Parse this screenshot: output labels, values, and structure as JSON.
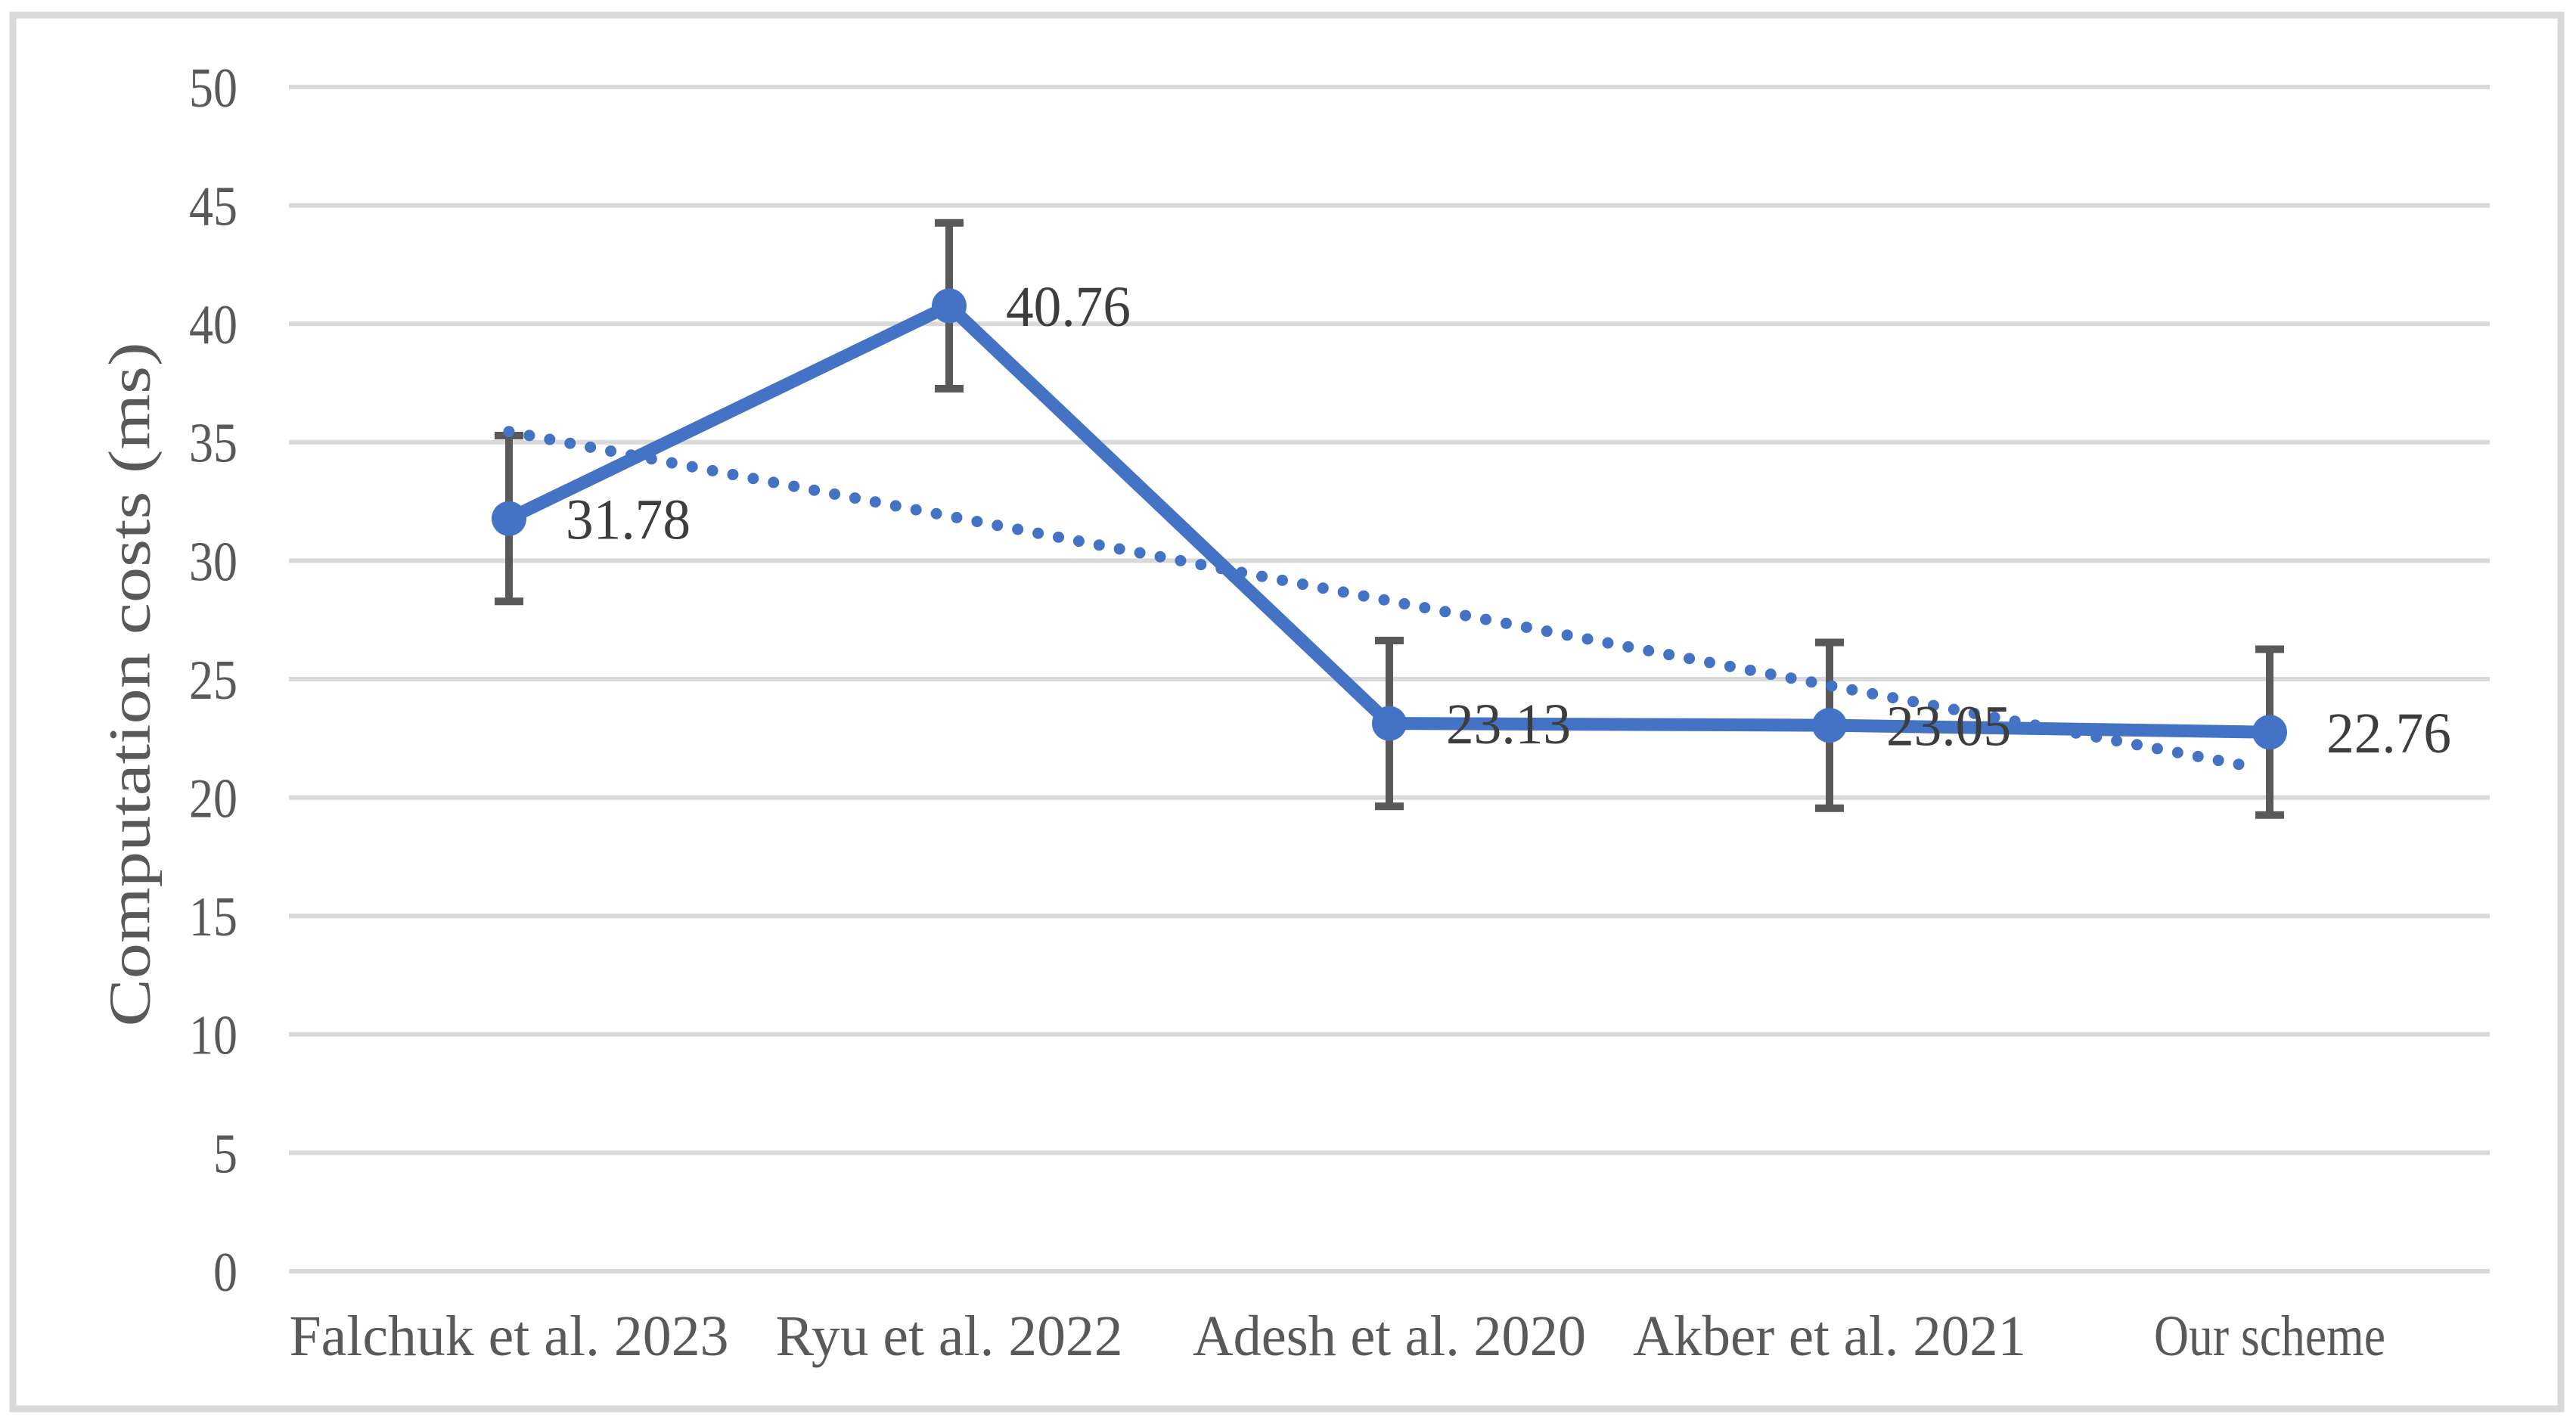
{
  "chart_data": {
    "type": "line",
    "title": "",
    "xlabel": "",
    "ylabel": "Computation costs (ms)",
    "categories": [
      "Falchuk et al. 2023",
      "Ryu et al. 2022",
      "Adesh et al. 2020",
      "Akber et al. 2021",
      "Our scheme"
    ],
    "series": [
      {
        "name": "Computation costs",
        "line_style": "solid",
        "marker": "circle",
        "values": [
          31.78,
          40.76,
          23.13,
          23.05,
          22.76
        ],
        "data_labels": [
          "31.78",
          "40.76",
          "23.13",
          "23.05",
          "22.76"
        ],
        "error_bar_plus_minus": 3.5
      },
      {
        "name": "Linear trendline",
        "line_style": "dotted",
        "marker": "none",
        "values": [
          35.45,
          31.88,
          28.3,
          24.73,
          21.15
        ]
      }
    ],
    "ylim": [
      0,
      50
    ],
    "yticks": [
      "0",
      "5",
      "10",
      "15",
      "20",
      "25",
      "30",
      "35",
      "40",
      "45",
      "50"
    ],
    "grid": "horizontal",
    "legend": "none",
    "colors": {
      "series_blue": "#4472C4",
      "error_bar_gray": "#595959",
      "axis_text_gray": "#595959",
      "data_label_gray": "#3d3d3d",
      "gridline_gray": "#D9D9D9",
      "border_gray": "#D9D9D9",
      "background": "#FFFFFF"
    }
  }
}
